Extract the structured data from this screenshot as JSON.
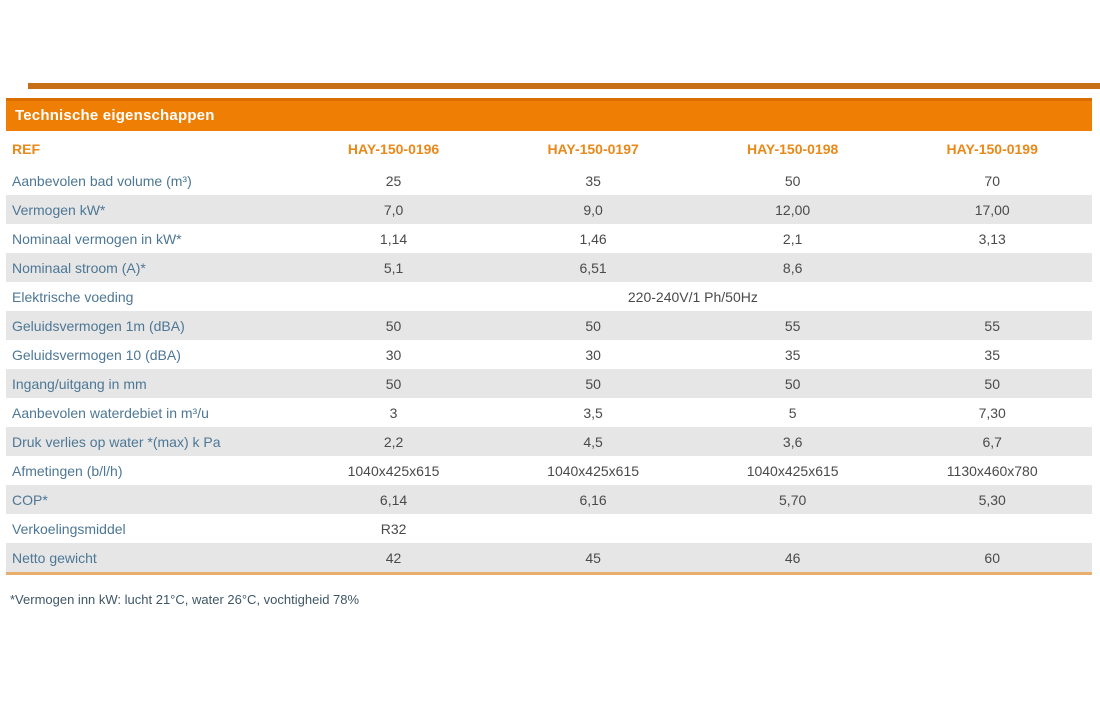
{
  "colors": {
    "accent_orange": "#ee7f04",
    "accent_orange_dark": "#d96d02",
    "top_stripe_orange": "#c76f16",
    "column_header_orange": "#e8891a",
    "row_label_blue": "#4d7795",
    "value_gray": "#4a4a4a",
    "stripe_gray": "#e6e6e6",
    "bottom_rule_tan": "#e7ae6e"
  },
  "table": {
    "title": "Technische eigenschappen",
    "ref_label": "REF",
    "columns": [
      "HAY-150-0196",
      "HAY-150-0197",
      "HAY-150-0198",
      "HAY-150-0199"
    ],
    "rows": [
      {
        "label": "Aanbevolen bad volume (m³)",
        "values": [
          "25",
          "35",
          "50",
          "70"
        ]
      },
      {
        "label": "Vermogen kW*",
        "values": [
          "7,0",
          "9,0",
          "12,00",
          "17,00"
        ]
      },
      {
        "label": "Nominaal vermogen in kW*",
        "values": [
          "1,14",
          "1,46",
          "2,1",
          "3,13"
        ]
      },
      {
        "label": "Nominaal stroom (A)*",
        "values": [
          "5,1",
          "6,51",
          "8,6",
          ""
        ]
      },
      {
        "label": "Elektrische voeding",
        "span_value": "220-240V/1 Ph/50Hz"
      },
      {
        "label": "Geluidsvermogen 1m (dBA)",
        "values": [
          "50",
          "50",
          "55",
          "55"
        ]
      },
      {
        "label": "Geluidsvermogen 10 (dBA)",
        "values": [
          "30",
          "30",
          "35",
          "35"
        ]
      },
      {
        "label": "Ingang/uitgang in mm",
        "values": [
          "50",
          "50",
          "50",
          "50"
        ]
      },
      {
        "label": "Aanbevolen waterdebiet in m³/u",
        "values": [
          "3",
          "3,5",
          "5",
          "7,30"
        ]
      },
      {
        "label": "Druk verlies op water *(max) k Pa",
        "values": [
          "2,2",
          "4,5",
          "3,6",
          "6,7"
        ]
      },
      {
        "label": "Afmetingen (b/l/h)",
        "values": [
          "1040x425x615",
          "1040x425x615",
          "1040x425x615",
          "1130x460x780"
        ]
      },
      {
        "label": "COP*",
        "values": [
          "6,14",
          "6,16",
          "5,70",
          "5,30"
        ]
      },
      {
        "label": "Verkoelingsmiddel",
        "values": [
          "R32",
          "",
          "",
          ""
        ]
      },
      {
        "label": "Netto gewicht",
        "values": [
          "42",
          "45",
          "46",
          "60"
        ]
      }
    ],
    "footnote": "*Vermogen inn kW: lucht 21°C, water 26°C, vochtigheid 78%"
  }
}
